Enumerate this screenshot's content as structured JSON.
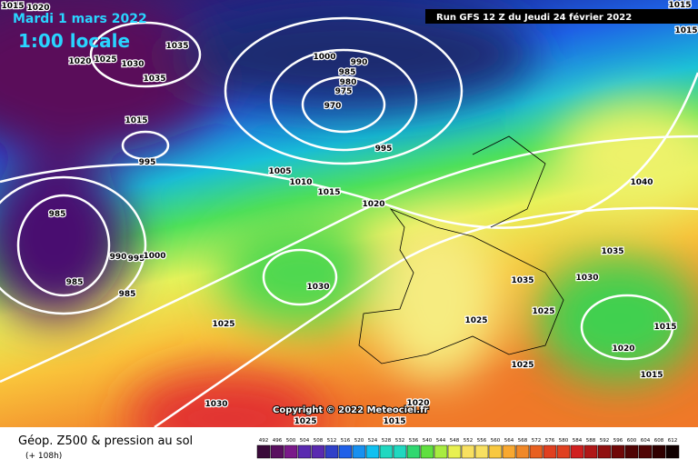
{
  "header": {
    "date": "Mardi 1 mars 2022",
    "time": "1:00 locale",
    "run": "Run GFS 12 Z du Jeudi 24 février 2022"
  },
  "copyright": "Copyright © 2022 Meteociel.fr",
  "footer": {
    "title": "Géop. Z500 & pression au sol",
    "lead": "(+ 108h)"
  },
  "legend": {
    "levels": [
      "492",
      "496",
      "500",
      "504",
      "508",
      "512",
      "516",
      "520",
      "524",
      "528",
      "532",
      "536",
      "540",
      "544",
      "548",
      "552",
      "556",
      "560",
      "564",
      "568",
      "572",
      "576",
      "580",
      "584",
      "588",
      "592",
      "596",
      "600",
      "604",
      "608",
      "612"
    ]
  },
  "isobar_labels": [
    "1015",
    "1020",
    "1035",
    "1020",
    "1025",
    "1030",
    "1035",
    "1015",
    "995",
    "1000",
    "990",
    "985",
    "980",
    "975",
    "970",
    "995",
    "1005",
    "1010",
    "1015",
    "1020",
    "985",
    "990",
    "995",
    "1000",
    "985",
    "985",
    "1030",
    "1025",
    "1025",
    "1025",
    "1035",
    "1030",
    "1035",
    "1040",
    "1015",
    "1020",
    "1015",
    "1025",
    "1030",
    "1020",
    "1015",
    "1025",
    "1015",
    "1015"
  ]
}
